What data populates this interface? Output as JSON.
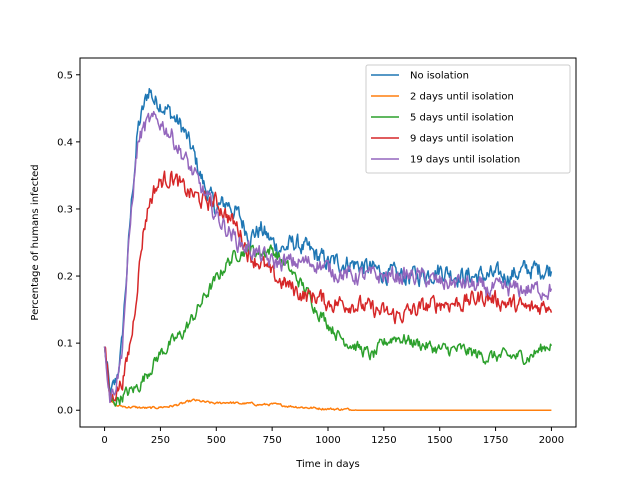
{
  "chart_data": {
    "type": "line",
    "title": "",
    "xlabel": "Time in days",
    "ylabel": "Percentage of humans infected",
    "xlim": [
      -110,
      2110
    ],
    "ylim": [
      -0.025,
      0.525
    ],
    "xticks": [
      0,
      250,
      500,
      750,
      1000,
      1250,
      1500,
      1750,
      2000
    ],
    "yticks": [
      0.0,
      0.1,
      0.2,
      0.3,
      0.4,
      0.5
    ],
    "xtick_labels": [
      "0",
      "250",
      "500",
      "750",
      "1000",
      "1250",
      "1500",
      "1750",
      "2000"
    ],
    "ytick_labels": [
      "0.0",
      "0.1",
      "0.2",
      "0.3",
      "0.4",
      "0.5"
    ],
    "grid": false,
    "legend_position": "top-right",
    "series": [
      {
        "name": "No isolation",
        "color": "#1f77b4",
        "x": [
          0,
          25,
          50,
          75,
          100,
          125,
          150,
          175,
          200,
          225,
          250,
          300,
          350,
          400,
          450,
          500,
          550,
          600,
          650,
          700,
          750,
          800,
          850,
          900,
          950,
          1000,
          1100,
          1200,
          1300,
          1400,
          1500,
          1600,
          1700,
          1800,
          1900,
          2000
        ],
        "y": [
          0.095,
          0.02,
          0.04,
          0.09,
          0.21,
          0.33,
          0.42,
          0.45,
          0.48,
          0.46,
          0.46,
          0.44,
          0.42,
          0.38,
          0.33,
          0.3,
          0.31,
          0.29,
          0.26,
          0.27,
          0.25,
          0.24,
          0.25,
          0.24,
          0.23,
          0.22,
          0.22,
          0.21,
          0.2,
          0.2,
          0.21,
          0.2,
          0.2,
          0.2,
          0.21,
          0.21
        ]
      },
      {
        "name": "2 days until isolation",
        "color": "#ff7f0e",
        "x": [
          0,
          25,
          50,
          100,
          200,
          300,
          350,
          400,
          450,
          500,
          550,
          600,
          650,
          700,
          750,
          800,
          900,
          1000,
          1100,
          1200,
          1500,
          2000
        ],
        "y": [
          0.095,
          0.015,
          0.007,
          0.005,
          0.003,
          0.006,
          0.01,
          0.015,
          0.012,
          0.01,
          0.012,
          0.01,
          0.01,
          0.008,
          0.009,
          0.007,
          0.004,
          0.002,
          0.001,
          0.0,
          0.0,
          0.0
        ]
      },
      {
        "name": "5 days until isolation",
        "color": "#2ca02c",
        "x": [
          0,
          25,
          50,
          100,
          150,
          200,
          250,
          300,
          350,
          400,
          450,
          500,
          550,
          600,
          650,
          700,
          750,
          800,
          850,
          900,
          950,
          1000,
          1050,
          1100,
          1150,
          1200,
          1250,
          1300,
          1400,
          1500,
          1600,
          1700,
          1800,
          1900,
          2000
        ],
        "y": [
          0.095,
          0.01,
          0.015,
          0.025,
          0.035,
          0.06,
          0.085,
          0.1,
          0.115,
          0.14,
          0.17,
          0.195,
          0.22,
          0.235,
          0.24,
          0.235,
          0.24,
          0.22,
          0.2,
          0.18,
          0.15,
          0.13,
          0.11,
          0.1,
          0.09,
          0.08,
          0.1,
          0.11,
          0.1,
          0.09,
          0.09,
          0.08,
          0.08,
          0.08,
          0.1
        ]
      },
      {
        "name": "9 days until isolation",
        "color": "#d62728",
        "x": [
          0,
          25,
          50,
          75,
          100,
          125,
          150,
          175,
          200,
          225,
          250,
          300,
          350,
          400,
          450,
          500,
          550,
          600,
          650,
          700,
          750,
          800,
          850,
          900,
          950,
          1000,
          1100,
          1200,
          1300,
          1400,
          1500,
          1600,
          1700,
          1800,
          1900,
          2000
        ],
        "y": [
          0.095,
          0.015,
          0.03,
          0.04,
          0.07,
          0.12,
          0.2,
          0.27,
          0.31,
          0.33,
          0.34,
          0.35,
          0.33,
          0.32,
          0.31,
          0.31,
          0.29,
          0.27,
          0.23,
          0.22,
          0.2,
          0.19,
          0.18,
          0.17,
          0.17,
          0.16,
          0.16,
          0.15,
          0.14,
          0.15,
          0.16,
          0.16,
          0.17,
          0.16,
          0.15,
          0.16
        ]
      },
      {
        "name": "19 days until isolation",
        "color": "#9467bd",
        "x": [
          0,
          25,
          50,
          75,
          100,
          125,
          150,
          175,
          200,
          225,
          250,
          300,
          350,
          400,
          450,
          500,
          550,
          600,
          650,
          700,
          750,
          800,
          850,
          900,
          950,
          1000,
          1100,
          1200,
          1300,
          1400,
          1500,
          1600,
          1700,
          1800,
          1900,
          2000
        ],
        "y": [
          0.095,
          0.02,
          0.04,
          0.08,
          0.2,
          0.32,
          0.4,
          0.42,
          0.43,
          0.43,
          0.43,
          0.41,
          0.38,
          0.35,
          0.32,
          0.29,
          0.27,
          0.25,
          0.24,
          0.23,
          0.22,
          0.22,
          0.22,
          0.22,
          0.22,
          0.21,
          0.2,
          0.2,
          0.2,
          0.2,
          0.19,
          0.19,
          0.18,
          0.18,
          0.18,
          0.18
        ]
      }
    ]
  }
}
